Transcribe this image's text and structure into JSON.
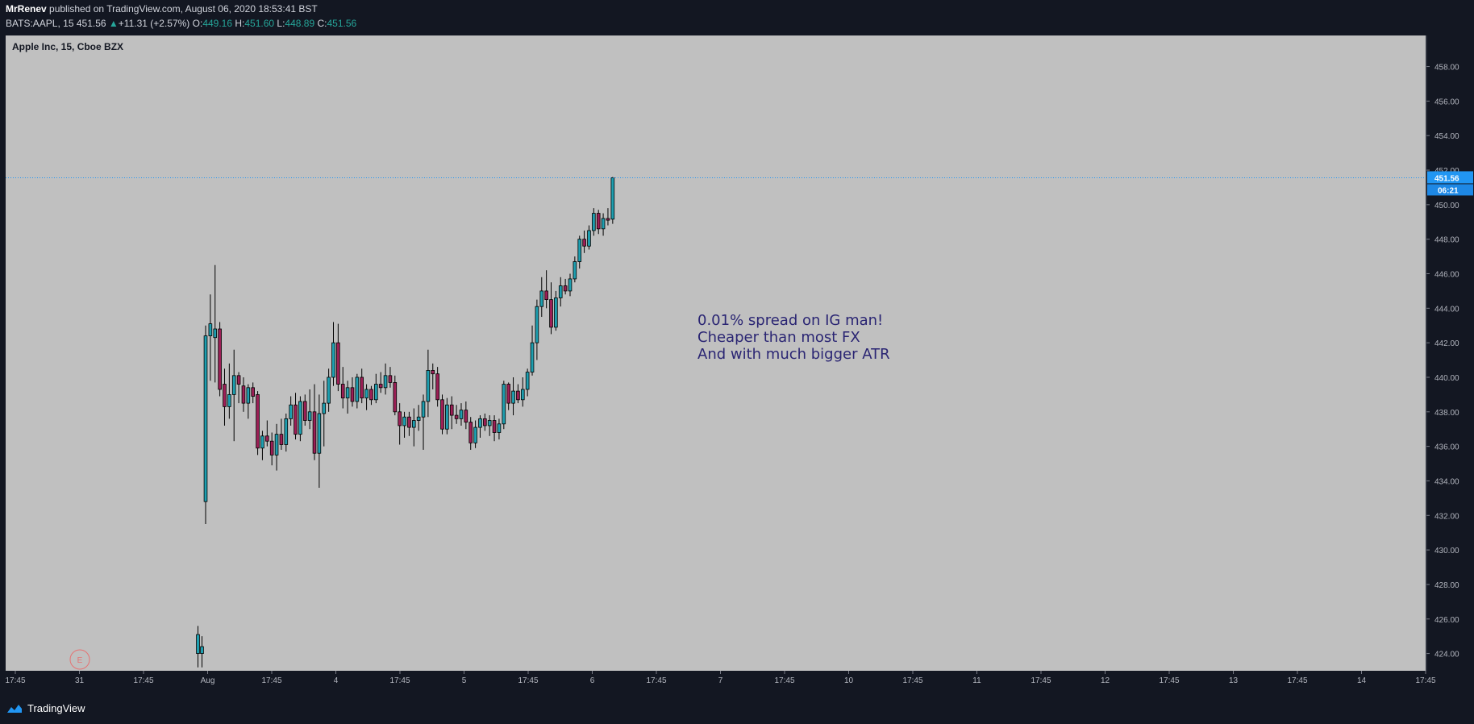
{
  "header": {
    "author": "MrRenev",
    "published_text": "published on TradingView.com, August 06, 2020 18:53:41 BST",
    "symbol": "BATS:AAPL, 15",
    "last_price": "451.56",
    "change_arrow": "▲",
    "change": "+11.31 (+2.57%)",
    "o_label": "O:",
    "o_value": "449.16",
    "h_label": "H:",
    "h_value": "451.60",
    "l_label": "L:",
    "l_value": "448.89",
    "c_label": "C:",
    "c_value": "451.56"
  },
  "chart_title": "Apple Inc, 15, Cboe BZX",
  "annotation_lines": [
    "0.01% spread on IG man!",
    "Cheaper than most FX",
    "And with much bigger ATR"
  ],
  "price_tag": "451.56",
  "countdown_tag": "06:21",
  "earnings_marker": "E",
  "footer": {
    "brand": "TradingView"
  },
  "colors": {
    "background": "#131722",
    "plot_bg": "#c0c0c0",
    "up": "#1e9fb0",
    "down": "#9c1f56",
    "price_line": "#2196f3",
    "annotation": "#2a2573",
    "earnings": "#e57373"
  },
  "chart_data": {
    "type": "candlestick",
    "title": "Apple Inc, 15, Cboe BZX",
    "ylim": [
      423,
      459.8
    ],
    "y_ticks": [
      424,
      426,
      428,
      430,
      432,
      434,
      436,
      438,
      440,
      442,
      444,
      446,
      448,
      450,
      452,
      454,
      456,
      458
    ],
    "y_tick_labels": [
      "424.00",
      "426.00",
      "428.00",
      "430.00",
      "432.00",
      "434.00",
      "436.00",
      "438.00",
      "440.00",
      "442.00",
      "444.00",
      "446.00",
      "448.00",
      "450.00",
      "452.00",
      "454.00",
      "456.00",
      "458.00"
    ],
    "x_tick_labels": [
      "17:45",
      "31",
      "17:45",
      "Aug",
      "17:45",
      "4",
      "17:45",
      "5",
      "17:45",
      "6",
      "17:45",
      "7",
      "17:45",
      "10",
      "17:45",
      "11",
      "17:45",
      "12",
      "17:45",
      "13",
      "17:45",
      "14",
      "17:45"
    ],
    "last_price": 451.56,
    "candles": [
      {
        "o": 424.0,
        "h": 425.6,
        "l": 423.2,
        "c": 425.1
      },
      {
        "o": 424.0,
        "h": 425.0,
        "l": 423.2,
        "c": 424.4
      },
      {
        "o": 432.8,
        "h": 443.0,
        "l": 431.5,
        "c": 442.4
      },
      {
        "o": 442.4,
        "h": 444.8,
        "l": 439.8,
        "c": 443.1
      },
      {
        "o": 442.3,
        "h": 446.5,
        "l": 439.7,
        "c": 442.8
      },
      {
        "o": 442.8,
        "h": 443.2,
        "l": 438.9,
        "c": 439.3
      },
      {
        "o": 439.6,
        "h": 440.5,
        "l": 437.2,
        "c": 438.3
      },
      {
        "o": 438.3,
        "h": 440.8,
        "l": 437.6,
        "c": 439.0
      },
      {
        "o": 439.0,
        "h": 441.6,
        "l": 436.3,
        "c": 440.1
      },
      {
        "o": 440.1,
        "h": 440.3,
        "l": 438.5,
        "c": 439.6
      },
      {
        "o": 439.5,
        "h": 440.0,
        "l": 438.0,
        "c": 438.5
      },
      {
        "o": 438.5,
        "h": 439.6,
        "l": 437.6,
        "c": 439.4
      },
      {
        "o": 439.4,
        "h": 439.7,
        "l": 438.5,
        "c": 438.9
      },
      {
        "o": 439.0,
        "h": 439.2,
        "l": 435.5,
        "c": 435.9
      },
      {
        "o": 435.9,
        "h": 436.9,
        "l": 435.2,
        "c": 436.6
      },
      {
        "o": 436.6,
        "h": 437.5,
        "l": 436.0,
        "c": 436.3
      },
      {
        "o": 436.3,
        "h": 436.8,
        "l": 434.9,
        "c": 435.5
      },
      {
        "o": 435.5,
        "h": 437.3,
        "l": 434.6,
        "c": 436.7
      },
      {
        "o": 436.7,
        "h": 437.6,
        "l": 435.8,
        "c": 436.1
      },
      {
        "o": 436.1,
        "h": 437.9,
        "l": 435.7,
        "c": 437.6
      },
      {
        "o": 437.6,
        "h": 438.9,
        "l": 437.2,
        "c": 438.4
      },
      {
        "o": 438.4,
        "h": 439.1,
        "l": 436.4,
        "c": 436.7
      },
      {
        "o": 436.7,
        "h": 438.9,
        "l": 436.3,
        "c": 438.6
      },
      {
        "o": 438.6,
        "h": 439.0,
        "l": 437.2,
        "c": 437.5
      },
      {
        "o": 437.5,
        "h": 439.3,
        "l": 437.0,
        "c": 438.0
      },
      {
        "o": 438.0,
        "h": 439.6,
        "l": 435.2,
        "c": 435.6
      },
      {
        "o": 435.6,
        "h": 439.0,
        "l": 433.6,
        "c": 437.9
      },
      {
        "o": 437.9,
        "h": 439.8,
        "l": 436.0,
        "c": 438.5
      },
      {
        "o": 438.5,
        "h": 440.5,
        "l": 438.0,
        "c": 440.0
      },
      {
        "o": 440.0,
        "h": 443.2,
        "l": 439.5,
        "c": 442.0
      },
      {
        "o": 442.0,
        "h": 443.1,
        "l": 439.2,
        "c": 439.6
      },
      {
        "o": 439.6,
        "h": 440.6,
        "l": 438.2,
        "c": 438.8
      },
      {
        "o": 438.8,
        "h": 439.8,
        "l": 437.9,
        "c": 439.4
      },
      {
        "o": 439.4,
        "h": 440.0,
        "l": 438.3,
        "c": 438.6
      },
      {
        "o": 438.6,
        "h": 440.2,
        "l": 438.2,
        "c": 440.0
      },
      {
        "o": 440.0,
        "h": 440.5,
        "l": 438.5,
        "c": 438.8
      },
      {
        "o": 438.8,
        "h": 439.6,
        "l": 438.1,
        "c": 439.3
      },
      {
        "o": 439.3,
        "h": 439.5,
        "l": 438.4,
        "c": 438.7
      },
      {
        "o": 438.7,
        "h": 440.2,
        "l": 438.5,
        "c": 439.6
      },
      {
        "o": 439.6,
        "h": 440.3,
        "l": 439.1,
        "c": 439.4
      },
      {
        "o": 439.4,
        "h": 440.8,
        "l": 439.0,
        "c": 440.1
      },
      {
        "o": 440.1,
        "h": 440.6,
        "l": 439.4,
        "c": 439.7
      },
      {
        "o": 439.7,
        "h": 440.1,
        "l": 437.8,
        "c": 438.0
      },
      {
        "o": 438.0,
        "h": 438.5,
        "l": 436.1,
        "c": 437.2
      },
      {
        "o": 437.2,
        "h": 438.0,
        "l": 436.5,
        "c": 437.7
      },
      {
        "o": 437.7,
        "h": 438.0,
        "l": 436.6,
        "c": 437.1
      },
      {
        "o": 437.1,
        "h": 438.2,
        "l": 436.0,
        "c": 437.5
      },
      {
        "o": 437.5,
        "h": 438.4,
        "l": 436.9,
        "c": 437.7
      },
      {
        "o": 437.7,
        "h": 439.0,
        "l": 435.8,
        "c": 438.6
      },
      {
        "o": 438.6,
        "h": 441.6,
        "l": 437.7,
        "c": 440.4
      },
      {
        "o": 440.4,
        "h": 440.8,
        "l": 439.3,
        "c": 440.2
      },
      {
        "o": 440.2,
        "h": 440.6,
        "l": 438.3,
        "c": 438.7
      },
      {
        "o": 438.7,
        "h": 439.0,
        "l": 436.7,
        "c": 437.0
      },
      {
        "o": 437.0,
        "h": 438.8,
        "l": 436.7,
        "c": 438.4
      },
      {
        "o": 438.4,
        "h": 438.9,
        "l": 437.0,
        "c": 437.8
      },
      {
        "o": 437.8,
        "h": 438.4,
        "l": 437.3,
        "c": 437.6
      },
      {
        "o": 437.6,
        "h": 438.5,
        "l": 437.2,
        "c": 438.1
      },
      {
        "o": 438.1,
        "h": 438.6,
        "l": 437.0,
        "c": 437.4
      },
      {
        "o": 437.4,
        "h": 437.7,
        "l": 435.8,
        "c": 436.2
      },
      {
        "o": 436.2,
        "h": 437.5,
        "l": 435.9,
        "c": 437.1
      },
      {
        "o": 437.1,
        "h": 437.8,
        "l": 436.5,
        "c": 437.6
      },
      {
        "o": 437.6,
        "h": 437.9,
        "l": 436.9,
        "c": 437.2
      },
      {
        "o": 437.2,
        "h": 437.8,
        "l": 436.6,
        "c": 437.5
      },
      {
        "o": 437.5,
        "h": 437.8,
        "l": 436.3,
        "c": 436.8
      },
      {
        "o": 436.8,
        "h": 437.6,
        "l": 436.4,
        "c": 437.3
      },
      {
        "o": 437.3,
        "h": 439.8,
        "l": 437.0,
        "c": 439.6
      },
      {
        "o": 439.6,
        "h": 439.7,
        "l": 438.1,
        "c": 438.5
      },
      {
        "o": 438.5,
        "h": 440.0,
        "l": 437.8,
        "c": 439.2
      },
      {
        "o": 439.2,
        "h": 439.6,
        "l": 438.5,
        "c": 438.7
      },
      {
        "o": 438.7,
        "h": 440.0,
        "l": 438.3,
        "c": 439.3
      },
      {
        "o": 439.3,
        "h": 440.5,
        "l": 438.9,
        "c": 440.3
      },
      {
        "o": 440.3,
        "h": 443.0,
        "l": 440.1,
        "c": 442.0
      },
      {
        "o": 442.0,
        "h": 444.5,
        "l": 441.0,
        "c": 444.1
      },
      {
        "o": 444.1,
        "h": 445.8,
        "l": 443.5,
        "c": 445.0
      },
      {
        "o": 445.0,
        "h": 446.2,
        "l": 444.0,
        "c": 444.5
      },
      {
        "o": 444.5,
        "h": 445.5,
        "l": 442.5,
        "c": 442.9
      },
      {
        "o": 442.9,
        "h": 445.0,
        "l": 442.7,
        "c": 444.6
      },
      {
        "o": 444.6,
        "h": 445.8,
        "l": 444.1,
        "c": 445.3
      },
      {
        "o": 445.3,
        "h": 445.7,
        "l": 444.8,
        "c": 445.0
      },
      {
        "o": 445.0,
        "h": 446.0,
        "l": 444.7,
        "c": 445.7
      },
      {
        "o": 445.7,
        "h": 447.0,
        "l": 445.5,
        "c": 446.7
      },
      {
        "o": 446.7,
        "h": 448.2,
        "l": 446.3,
        "c": 448.0
      },
      {
        "o": 448.0,
        "h": 448.5,
        "l": 447.2,
        "c": 447.6
      },
      {
        "o": 447.6,
        "h": 448.8,
        "l": 447.4,
        "c": 448.5
      },
      {
        "o": 448.5,
        "h": 449.8,
        "l": 448.2,
        "c": 449.5
      },
      {
        "o": 449.5,
        "h": 449.7,
        "l": 448.3,
        "c": 448.6
      },
      {
        "o": 448.6,
        "h": 449.5,
        "l": 448.2,
        "c": 449.2
      },
      {
        "o": 449.2,
        "h": 449.8,
        "l": 448.8,
        "c": 449.1
      },
      {
        "o": 449.16,
        "h": 451.6,
        "l": 448.89,
        "c": 451.56
      }
    ]
  }
}
